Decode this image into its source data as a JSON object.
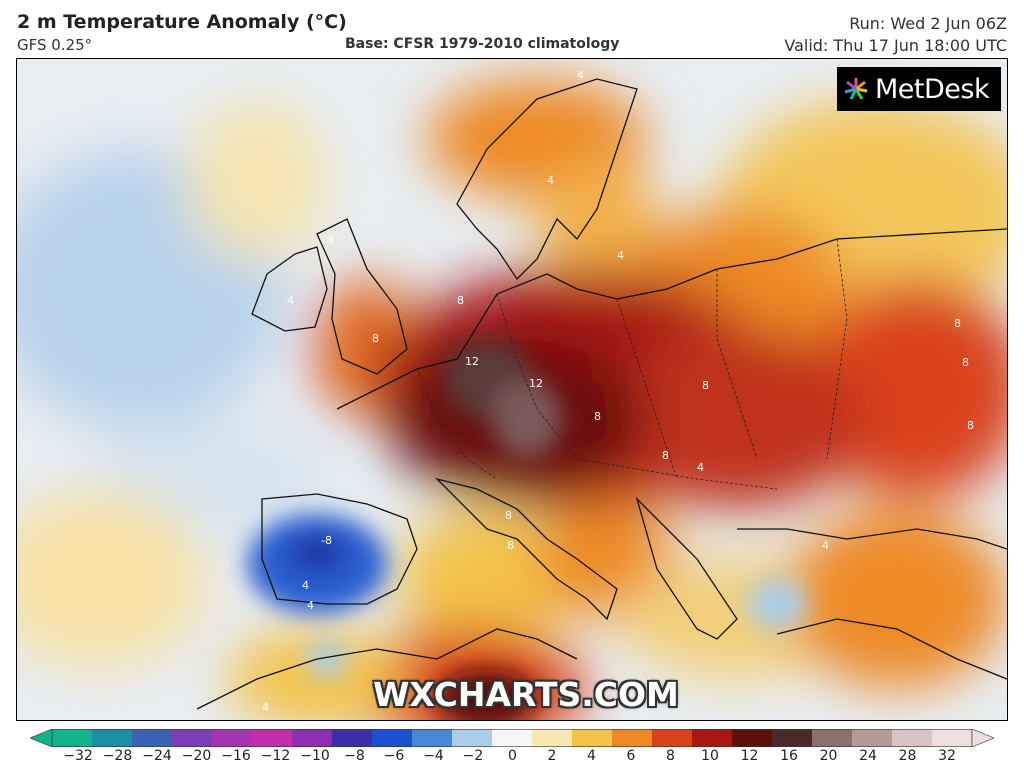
{
  "header": {
    "title": "2 m Temperature Anomaly (°C)",
    "model": "GFS 0.25°",
    "base": "Base: CFSR 1979-2010 climatology",
    "run": "Run: Wed 2 Jun 06Z",
    "valid": "Valid: Thu 17 Jun 18:00 UTC"
  },
  "branding": {
    "logo_text": "MetDesk",
    "watermark": "WXCHARTS.COM"
  },
  "map_labels": [
    "4",
    "4",
    "4",
    "4",
    "4",
    "8",
    "8",
    "12",
    "12",
    "8",
    "8",
    "8",
    "8",
    "8",
    "8",
    "8",
    "8",
    "-8",
    "4",
    "4",
    "4",
    "4",
    "4"
  ],
  "colorbar": {
    "ticks": [
      "−32",
      "−28",
      "−24",
      "−20",
      "−16",
      "−12",
      "−10",
      "−8",
      "−6",
      "−4",
      "−2",
      "0",
      "2",
      "4",
      "6",
      "8",
      "10",
      "12",
      "16",
      "20",
      "24",
      "28",
      "32"
    ],
    "colors": [
      "#13b38a",
      "#1b8ea8",
      "#3d62b5",
      "#7a3fb7",
      "#a434b0",
      "#c02ea8",
      "#8b2fb0",
      "#3b2ea8",
      "#1d4fcf",
      "#4a86d6",
      "#a9cdea",
      "#f4f6f8",
      "#f6e8b0",
      "#f3c24a",
      "#ed8a26",
      "#d9431a",
      "#a81812",
      "#5e0f0a",
      "#4a2a2a",
      "#8a7070",
      "#b49a9a",
      "#d8c4c4",
      "#f0dede"
    ]
  }
}
